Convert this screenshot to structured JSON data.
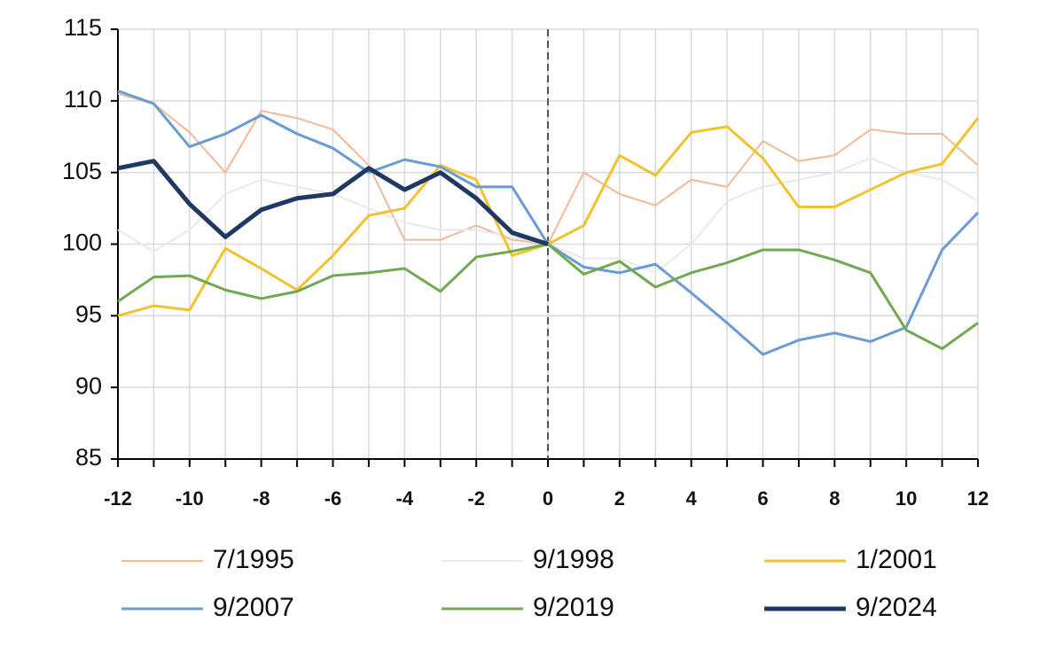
{
  "chart_data": {
    "type": "line",
    "x": [
      -12,
      -11,
      -10,
      -9,
      -8,
      -7,
      -6,
      -5,
      -4,
      -3,
      -2,
      -1,
      0,
      1,
      2,
      3,
      4,
      5,
      6,
      7,
      8,
      9,
      10,
      11,
      12
    ],
    "series": [
      {
        "name": "7/1995",
        "color": "#f2b89a",
        "width": 2,
        "values": [
          110.5,
          109.8,
          107.8,
          105,
          109.3,
          108.8,
          108,
          105.5,
          100.3,
          100.3,
          101.3,
          100.3,
          100,
          105,
          103.5,
          102.7,
          104.5,
          104,
          107.2,
          105.8,
          106.2,
          108,
          107.7,
          107.7,
          105.5
        ]
      },
      {
        "name": "9/1998",
        "color": "#e9e9e9",
        "width": 2,
        "values": [
          101,
          99.5,
          101,
          103.5,
          104.5,
          104,
          103.5,
          102.5,
          101.5,
          101,
          101,
          100.5,
          100,
          99,
          99,
          98,
          100,
          103,
          104,
          104.5,
          105,
          106,
          105,
          104.5,
          103
        ]
      },
      {
        "name": "1/2001",
        "color": "#f2c12e",
        "width": 3,
        "values": [
          95,
          95.7,
          95.4,
          99.7,
          98.3,
          96.8,
          99.2,
          102,
          102.5,
          105.5,
          104.5,
          99.2,
          100,
          101.3,
          106.2,
          104.8,
          107.8,
          108.2,
          106,
          102.6,
          102.6,
          103.8,
          105,
          105.6,
          108.8
        ]
      },
      {
        "name": "9/2007",
        "color": "#6a9bd4",
        "width": 3,
        "values": [
          110.7,
          109.8,
          106.8,
          107.7,
          109,
          107.7,
          106.7,
          105,
          105.9,
          105.4,
          104,
          104,
          100,
          98.4,
          98,
          98.6,
          96.6,
          94.5,
          92.3,
          93.3,
          93.8,
          93.2,
          94.2,
          99.6,
          102.2
        ]
      },
      {
        "name": "9/2019",
        "color": "#72a850",
        "width": 3,
        "values": [
          96,
          97.7,
          97.8,
          96.8,
          96.2,
          96.7,
          97.8,
          98,
          98.3,
          96.7,
          99.1,
          99.5,
          100,
          97.9,
          98.8,
          97,
          98,
          98.7,
          99.6,
          99.6,
          98.9,
          98,
          94,
          92.7,
          94.5
        ]
      },
      {
        "name": "9/2024",
        "color": "#1f3864",
        "width": 5,
        "values": [
          105.3,
          105.8,
          102.8,
          100.5,
          102.4,
          103.2,
          103.5,
          105.3,
          103.8,
          105,
          103.2,
          100.8,
          100,
          null,
          null,
          null,
          null,
          null,
          null,
          null,
          null,
          null,
          null,
          null,
          null
        ]
      }
    ],
    "xlim": [
      -12,
      12
    ],
    "xticks": [
      -12,
      -10,
      -8,
      -6,
      -4,
      -2,
      0,
      2,
      4,
      6,
      8,
      10,
      12
    ],
    "ylim": [
      85,
      115
    ],
    "yticks": [
      85,
      90,
      95,
      100,
      105,
      110,
      115
    ],
    "vline": 0,
    "grid": true
  }
}
